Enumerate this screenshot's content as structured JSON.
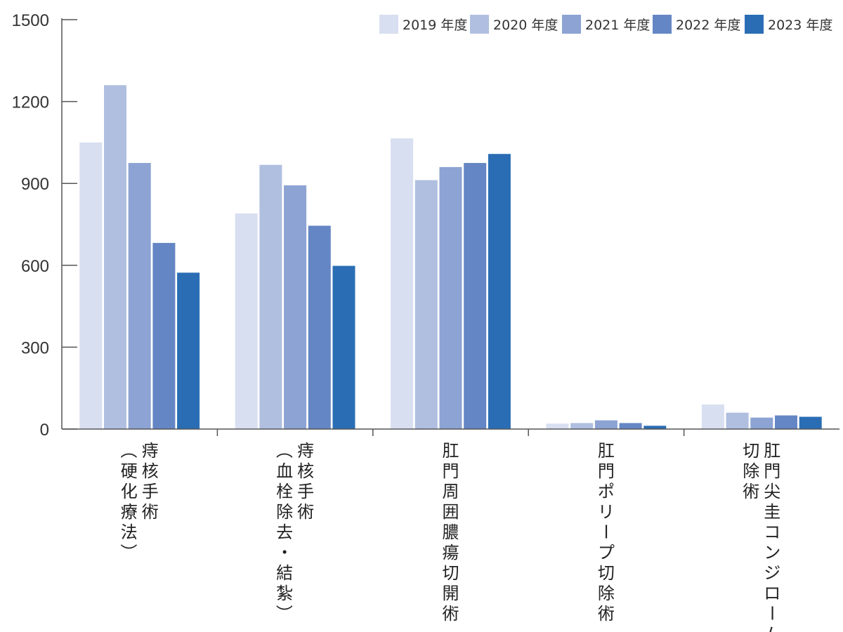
{
  "chart_data": {
    "type": "bar",
    "title": "",
    "xlabel": "",
    "ylabel": "",
    "ylim": [
      0,
      1500
    ],
    "yticks": [
      0,
      300,
      600,
      900,
      1200,
      1500
    ],
    "grid": false,
    "legend_position": "top-right",
    "categories": [
      [
        "痔核手術",
        "（硬化療法）"
      ],
      [
        "痔核手術",
        "（血栓除去・結紮）"
      ],
      [
        "肛門周囲膿瘍切開術"
      ],
      [
        "肛門ポリープ切除術"
      ],
      [
        "肛門尖圭コンジローム",
        "切除術"
      ]
    ],
    "series": [
      {
        "name": "2019 年度",
        "color": "#d8dff0",
        "values": [
          1050,
          790,
          1065,
          20,
          90
        ]
      },
      {
        "name": "2020 年度",
        "color": "#b0bfe0",
        "values": [
          1260,
          968,
          912,
          22,
          60
        ]
      },
      {
        "name": "2021 年度",
        "color": "#8ca3d3",
        "values": [
          975,
          893,
          960,
          32,
          42
        ]
      },
      {
        "name": "2022 年度",
        "color": "#6586c4",
        "values": [
          682,
          745,
          975,
          22,
          50
        ]
      },
      {
        "name": "2023 年度",
        "color": "#2a6db4",
        "values": [
          573,
          598,
          1008,
          12,
          45
        ]
      }
    ]
  }
}
